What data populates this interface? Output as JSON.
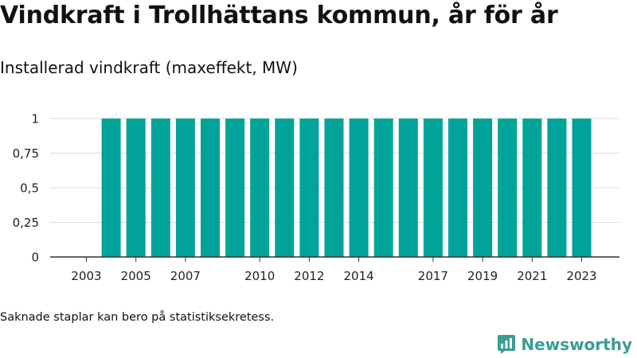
{
  "title": "Vindkraft i Trollhättans kommun, år för år",
  "subtitle": "Installerad vindkraft (maxeffekt, MW)",
  "footnote": "Saknade staplar kan bero på statistiksekretess.",
  "brand": {
    "label": "Newsworthy",
    "icon": "newsworthy-logo-icon",
    "color": "#3a9d93"
  },
  "chart_data": {
    "type": "bar",
    "title": "",
    "xlabel": "",
    "ylabel": "",
    "x": [
      2003,
      2004,
      2005,
      2006,
      2007,
      2008,
      2009,
      2010,
      2011,
      2012,
      2013,
      2014,
      2015,
      2016,
      2017,
      2018,
      2019,
      2020,
      2021,
      2022,
      2023
    ],
    "values": [
      null,
      1,
      1,
      1,
      1,
      1,
      1,
      1,
      1,
      1,
      1,
      1,
      1,
      1,
      1,
      1,
      1,
      1,
      1,
      1,
      1
    ],
    "x_tick_labels": [
      "2003",
      "2005",
      "2007",
      "2010",
      "2012",
      "2014",
      "2017",
      "2019",
      "2021",
      "2023"
    ],
    "y_ticks": [
      0,
      0.25,
      0.5,
      0.75,
      1
    ],
    "y_tick_labels": [
      "0",
      "0,25",
      "0,5",
      "0,75",
      "1"
    ],
    "ylim": [
      0,
      1
    ],
    "grid": true,
    "bar_color": "#00a398"
  }
}
